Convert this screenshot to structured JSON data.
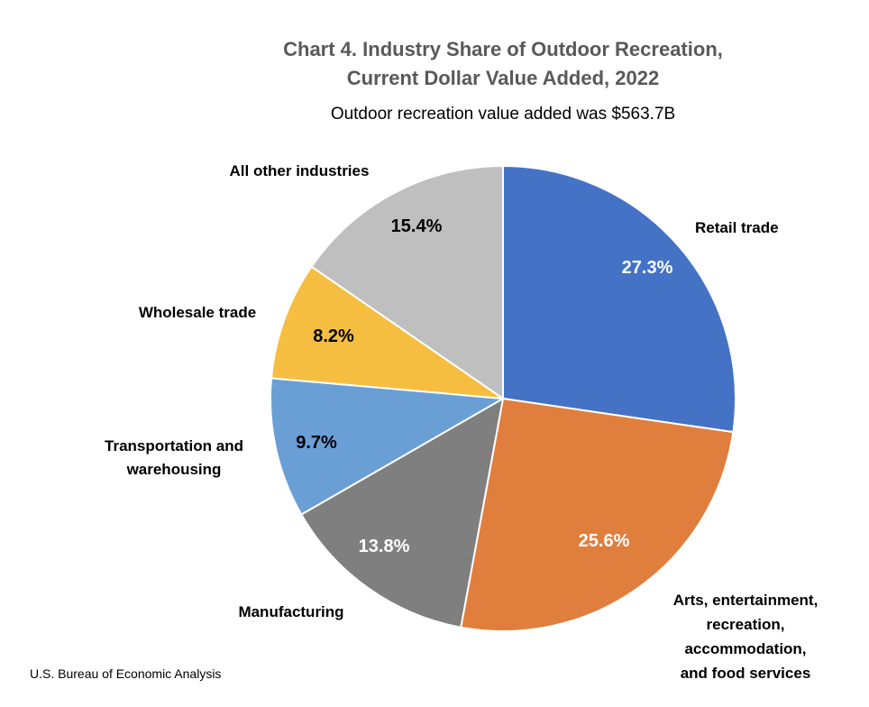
{
  "chart_data": {
    "type": "pie",
    "title": "Chart 4. Industry Share of Outdoor Recreation,",
    "title_line2": "Current Dollar Value Added, 2022",
    "subtitle": "Outdoor recreation value added was $563.7B",
    "source": "U.S. Bureau of Economic Analysis",
    "start_angle_deg": 0,
    "direction": "clockwise",
    "slices": [
      {
        "label": "Retail trade",
        "label_lines": [
          "Retail trade"
        ],
        "value": 27.3,
        "value_label": "27.3%",
        "color": "#4472C4",
        "value_text_color": "#FFFFFF"
      },
      {
        "label": "Arts, entertainment, recreation, accommodation, and food services",
        "label_lines": [
          "Arts, entertainment,",
          "recreation,",
          "accommodation,",
          "and food services"
        ],
        "value": 25.6,
        "value_label": "25.6%",
        "color": "#E07E3D",
        "value_text_color": "#FFFFFF"
      },
      {
        "label": "Manufacturing",
        "label_lines": [
          "Manufacturing"
        ],
        "value": 13.8,
        "value_label": "13.8%",
        "color": "#7F7F7F",
        "value_text_color": "#FFFFFF"
      },
      {
        "label": "Transportation and warehousing",
        "label_lines": [
          "Transportation and",
          "warehousing"
        ],
        "value": 9.7,
        "value_label": "9.7%",
        "color": "#6A9FD6",
        "value_text_color": "#000000"
      },
      {
        "label": "Wholesale trade",
        "label_lines": [
          "Wholesale trade"
        ],
        "value": 8.2,
        "value_label": "8.2%",
        "color": "#F6BE41",
        "value_text_color": "#000000"
      },
      {
        "label": "All other industries",
        "label_lines": [
          "All other industries"
        ],
        "value": 15.4,
        "value_label": "15.4%",
        "color": "#BFBFBF",
        "value_text_color": "#000000"
      }
    ]
  }
}
